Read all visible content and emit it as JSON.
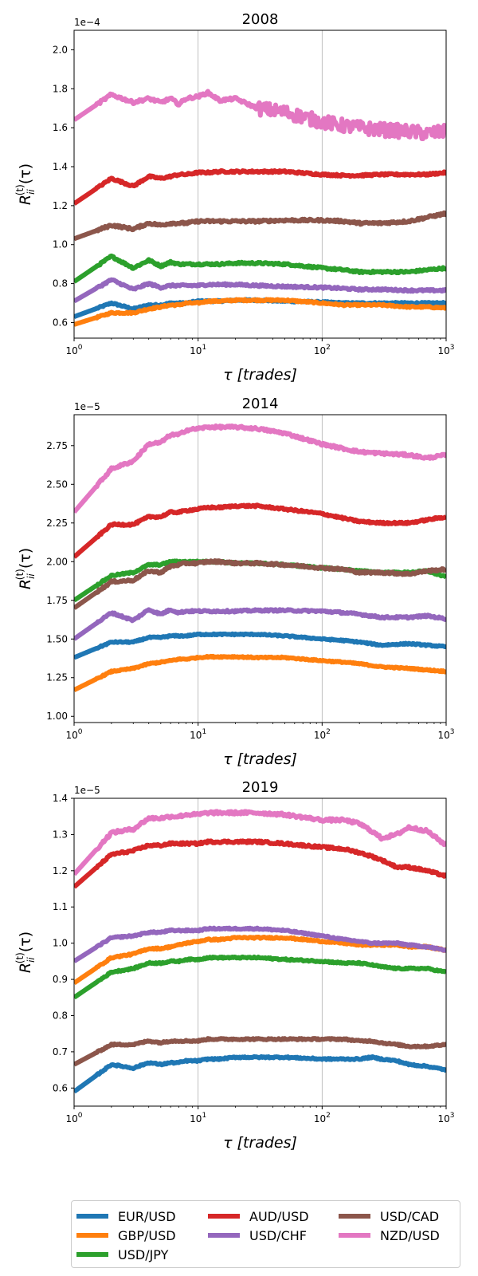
{
  "chart_data": [
    {
      "type": "line",
      "title": "2008",
      "xlabel": "τ [trades]",
      "ylabel": "R_ii^(t)(τ)",
      "x_scale": "log",
      "xlim": [
        1,
        1000
      ],
      "ylim": [
        0.52,
        2.1
      ],
      "y_multiplier": "1e−4",
      "x_ticks": [
        "10^0",
        "10^1",
        "10^2",
        "10^3"
      ],
      "y_ticks": [
        "0.6",
        "0.8",
        "1.0",
        "1.2",
        "1.4",
        "1.6",
        "1.8",
        "2.0"
      ],
      "y_tick_values": [
        0.6,
        0.8,
        1.0,
        1.2,
        1.4,
        1.6,
        1.8,
        2.0
      ],
      "grid": "vertical at decades",
      "x": [
        1,
        2,
        3,
        4,
        5,
        6,
        7,
        8,
        10,
        12,
        15,
        20,
        30,
        50,
        100,
        150,
        200,
        300,
        500,
        700,
        1000
      ],
      "series": [
        {
          "name": "EUR/USD",
          "color": "#1f77b4",
          "values": [
            0.63,
            0.7,
            0.67,
            0.69,
            0.69,
            0.7,
            0.7,
            0.7,
            0.71,
            0.71,
            0.71,
            0.715,
            0.715,
            0.71,
            0.705,
            0.7,
            0.7,
            0.7,
            0.7,
            0.7,
            0.7
          ],
          "noise": 0.004
        },
        {
          "name": "GBP/USD",
          "color": "#ff7f0e",
          "values": [
            0.59,
            0.65,
            0.65,
            0.67,
            0.68,
            0.69,
            0.69,
            0.7,
            0.7,
            0.71,
            0.71,
            0.715,
            0.715,
            0.715,
            0.7,
            0.69,
            0.69,
            0.69,
            0.68,
            0.68,
            0.675
          ],
          "noise": 0.004
        },
        {
          "name": "USD/JPY",
          "color": "#2ca02c",
          "values": [
            0.81,
            0.94,
            0.88,
            0.92,
            0.89,
            0.91,
            0.9,
            0.9,
            0.9,
            0.9,
            0.9,
            0.905,
            0.905,
            0.9,
            0.88,
            0.87,
            0.86,
            0.86,
            0.86,
            0.87,
            0.88
          ],
          "noise": 0.005
        },
        {
          "name": "AUD/USD",
          "color": "#d62728",
          "values": [
            1.21,
            1.34,
            1.3,
            1.35,
            1.34,
            1.35,
            1.36,
            1.36,
            1.37,
            1.37,
            1.375,
            1.375,
            1.375,
            1.375,
            1.36,
            1.355,
            1.355,
            1.36,
            1.36,
            1.36,
            1.37
          ],
          "noise": 0.005
        },
        {
          "name": "USD/CHF",
          "color": "#9467bd",
          "values": [
            0.71,
            0.82,
            0.77,
            0.8,
            0.78,
            0.79,
            0.79,
            0.79,
            0.79,
            0.795,
            0.795,
            0.795,
            0.79,
            0.785,
            0.78,
            0.775,
            0.77,
            0.77,
            0.765,
            0.765,
            0.765
          ],
          "noise": 0.005
        },
        {
          "name": "USD/CAD",
          "color": "#8c564b",
          "values": [
            1.03,
            1.1,
            1.08,
            1.11,
            1.1,
            1.11,
            1.11,
            1.11,
            1.12,
            1.12,
            1.12,
            1.12,
            1.12,
            1.125,
            1.125,
            1.12,
            1.11,
            1.11,
            1.12,
            1.14,
            1.16
          ],
          "noise": 0.006
        },
        {
          "name": "NZD/USD",
          "color": "#e377c2",
          "values": [
            1.64,
            1.77,
            1.73,
            1.75,
            1.73,
            1.75,
            1.72,
            1.75,
            1.76,
            1.78,
            1.74,
            1.75,
            1.7,
            1.68,
            1.63,
            1.61,
            1.6,
            1.59,
            1.58,
            1.57,
            1.58
          ],
          "noise": 0.035,
          "noise_from": 30
        }
      ]
    },
    {
      "type": "line",
      "title": "2014",
      "xlabel": "τ [trades]",
      "ylabel": "R_ii^(t)(τ)",
      "x_scale": "log",
      "xlim": [
        1,
        1000
      ],
      "ylim": [
        0.96,
        2.95
      ],
      "y_multiplier": "1e−5",
      "x_ticks": [
        "10^0",
        "10^1",
        "10^2",
        "10^3"
      ],
      "y_ticks": [
        "1.00",
        "1.25",
        "1.50",
        "1.75",
        "2.00",
        "2.25",
        "2.50",
        "2.75"
      ],
      "y_tick_values": [
        1.0,
        1.25,
        1.5,
        1.75,
        2.0,
        2.25,
        2.5,
        2.75
      ],
      "grid": "vertical at decades",
      "x": [
        1,
        2,
        3,
        4,
        5,
        6,
        7,
        8,
        10,
        12,
        15,
        20,
        30,
        50,
        100,
        150,
        200,
        300,
        500,
        700,
        1000
      ],
      "series": [
        {
          "name": "EUR/USD",
          "color": "#1f77b4",
          "values": [
            1.38,
            1.48,
            1.48,
            1.51,
            1.51,
            1.52,
            1.52,
            1.52,
            1.53,
            1.53,
            1.53,
            1.53,
            1.53,
            1.52,
            1.5,
            1.49,
            1.48,
            1.46,
            1.47,
            1.46,
            1.45
          ],
          "noise": 0.004
        },
        {
          "name": "GBP/USD",
          "color": "#ff7f0e",
          "values": [
            1.17,
            1.29,
            1.31,
            1.34,
            1.35,
            1.36,
            1.37,
            1.37,
            1.38,
            1.385,
            1.385,
            1.385,
            1.38,
            1.38,
            1.36,
            1.35,
            1.34,
            1.32,
            1.31,
            1.3,
            1.29
          ],
          "noise": 0.004
        },
        {
          "name": "USD/JPY",
          "color": "#2ca02c",
          "values": [
            1.75,
            1.91,
            1.93,
            1.98,
            1.98,
            2.0,
            2.0,
            2.0,
            2.0,
            2.0,
            2.0,
            1.99,
            1.99,
            1.98,
            1.96,
            1.95,
            1.94,
            1.93,
            1.93,
            1.94,
            1.9
          ],
          "noise": 0.005
        },
        {
          "name": "AUD/USD",
          "color": "#d62728",
          "values": [
            2.03,
            2.24,
            2.24,
            2.29,
            2.29,
            2.32,
            2.32,
            2.33,
            2.34,
            2.35,
            2.35,
            2.36,
            2.36,
            2.34,
            2.31,
            2.28,
            2.26,
            2.25,
            2.25,
            2.27,
            2.29
          ],
          "noise": 0.006
        },
        {
          "name": "USD/CHF",
          "color": "#9467bd",
          "values": [
            1.5,
            1.67,
            1.62,
            1.69,
            1.66,
            1.69,
            1.67,
            1.68,
            1.68,
            1.68,
            1.68,
            1.68,
            1.685,
            1.685,
            1.68,
            1.67,
            1.66,
            1.64,
            1.64,
            1.65,
            1.63
          ],
          "noise": 0.006
        },
        {
          "name": "USD/CAD",
          "color": "#8c564b",
          "values": [
            1.7,
            1.87,
            1.88,
            1.94,
            1.93,
            1.97,
            1.98,
            1.99,
            1.99,
            2.0,
            2.0,
            1.99,
            1.99,
            1.98,
            1.96,
            1.95,
            1.93,
            1.93,
            1.92,
            1.94,
            1.95
          ],
          "noise": 0.007
        },
        {
          "name": "NZD/USD",
          "color": "#e377c2",
          "values": [
            2.32,
            2.6,
            2.65,
            2.76,
            2.77,
            2.82,
            2.82,
            2.85,
            2.86,
            2.87,
            2.87,
            2.87,
            2.86,
            2.83,
            2.76,
            2.73,
            2.71,
            2.7,
            2.69,
            2.67,
            2.69
          ],
          "noise": 0.008
        }
      ]
    },
    {
      "type": "line",
      "title": "2019",
      "xlabel": "τ [trades]",
      "ylabel": "R_ii^(t)(τ)",
      "x_scale": "log",
      "xlim": [
        1,
        1000
      ],
      "ylim": [
        0.55,
        1.4
      ],
      "y_multiplier": "1e−5",
      "x_ticks": [
        "10^0",
        "10^1",
        "10^2",
        "10^3"
      ],
      "y_ticks": [
        "0.6",
        "0.7",
        "0.8",
        "0.9",
        "1.0",
        "1.1",
        "1.2",
        "1.3",
        "1.4"
      ],
      "y_tick_values": [
        0.6,
        0.7,
        0.8,
        0.9,
        1.0,
        1.1,
        1.2,
        1.3,
        1.4
      ],
      "grid": "vertical at decades",
      "x": [
        1,
        2,
        3,
        4,
        5,
        6,
        7,
        8,
        10,
        12,
        15,
        20,
        30,
        50,
        100,
        150,
        200,
        250,
        300,
        400,
        500,
        700,
        1000
      ],
      "series": [
        {
          "name": "EUR/USD",
          "color": "#1f77b4",
          "values": [
            0.59,
            0.665,
            0.655,
            0.67,
            0.665,
            0.67,
            0.67,
            0.675,
            0.675,
            0.68,
            0.68,
            0.685,
            0.685,
            0.685,
            0.68,
            0.68,
            0.68,
            0.685,
            0.68,
            0.675,
            0.665,
            0.66,
            0.65
          ],
          "noise": 0.002
        },
        {
          "name": "GBP/USD",
          "color": "#ff7f0e",
          "values": [
            0.89,
            0.96,
            0.97,
            0.985,
            0.985,
            0.99,
            0.995,
            1.0,
            1.005,
            1.01,
            1.01,
            1.015,
            1.015,
            1.015,
            1.005,
            1.0,
            0.995,
            0.995,
            0.995,
            0.995,
            0.99,
            0.99,
            0.98
          ],
          "noise": 0.002
        },
        {
          "name": "USD/JPY",
          "color": "#2ca02c",
          "values": [
            0.85,
            0.92,
            0.93,
            0.945,
            0.945,
            0.95,
            0.95,
            0.955,
            0.955,
            0.96,
            0.96,
            0.96,
            0.96,
            0.955,
            0.95,
            0.945,
            0.945,
            0.94,
            0.935,
            0.93,
            0.93,
            0.93,
            0.92
          ],
          "noise": 0.002
        },
        {
          "name": "AUD/USD",
          "color": "#d62728",
          "values": [
            1.155,
            1.245,
            1.255,
            1.27,
            1.27,
            1.275,
            1.275,
            1.275,
            1.275,
            1.28,
            1.28,
            1.28,
            1.28,
            1.275,
            1.265,
            1.26,
            1.25,
            1.24,
            1.23,
            1.21,
            1.21,
            1.2,
            1.185
          ],
          "noise": 0.003
        },
        {
          "name": "USD/CHF",
          "color": "#9467bd",
          "values": [
            0.95,
            1.015,
            1.02,
            1.03,
            1.03,
            1.035,
            1.035,
            1.035,
            1.035,
            1.04,
            1.04,
            1.04,
            1.04,
            1.035,
            1.02,
            1.01,
            1.005,
            1.0,
            1.0,
            1.0,
            0.995,
            0.99,
            0.98
          ],
          "noise": 0.002
        },
        {
          "name": "USD/CAD",
          "color": "#8c564b",
          "values": [
            0.665,
            0.72,
            0.72,
            0.73,
            0.725,
            0.73,
            0.73,
            0.73,
            0.73,
            0.735,
            0.735,
            0.735,
            0.735,
            0.735,
            0.735,
            0.735,
            0.73,
            0.73,
            0.725,
            0.72,
            0.715,
            0.715,
            0.72
          ],
          "noise": 0.002
        },
        {
          "name": "NZD/USD",
          "color": "#e377c2",
          "values": [
            1.19,
            1.305,
            1.315,
            1.345,
            1.345,
            1.35,
            1.35,
            1.355,
            1.355,
            1.36,
            1.36,
            1.36,
            1.36,
            1.355,
            1.34,
            1.34,
            1.33,
            1.31,
            1.29,
            1.3,
            1.32,
            1.31,
            1.27
          ],
          "noise": 0.004
        }
      ]
    }
  ],
  "legend": {
    "placement": "bottom",
    "columns": 3,
    "entries": [
      {
        "label": "EUR/USD",
        "color": "#1f77b4"
      },
      {
        "label": "GBP/USD",
        "color": "#ff7f0e"
      },
      {
        "label": "USD/JPY",
        "color": "#2ca02c"
      },
      {
        "label": "AUD/USD",
        "color": "#d62728"
      },
      {
        "label": "USD/CHF",
        "color": "#9467bd"
      },
      {
        "label": "USD/CAD",
        "color": "#8c564b"
      },
      {
        "label": "NZD/USD",
        "color": "#e377c2"
      }
    ]
  }
}
